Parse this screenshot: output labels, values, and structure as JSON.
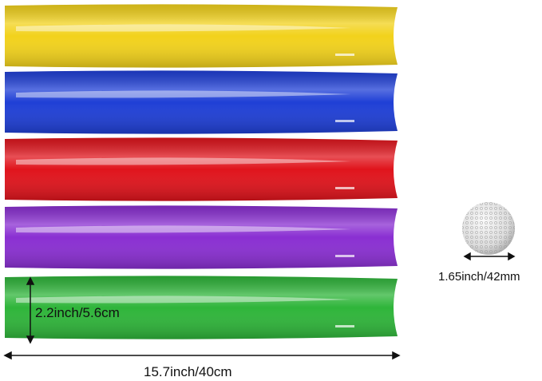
{
  "product": {
    "tubes": [
      {
        "color_name": "yellow",
        "color": "#f2d21c"
      },
      {
        "color_name": "blue",
        "color": "#1f3fd6"
      },
      {
        "color_name": "red",
        "color": "#e0141c"
      },
      {
        "color_name": "purple",
        "color": "#8a2fd2"
      },
      {
        "color_name": "green",
        "color": "#2fb53a"
      }
    ],
    "ball_color": "#e8e8e8"
  },
  "dimensions": {
    "height": "2.2inch/5.6cm",
    "length": "15.7inch/40cm",
    "ball_diameter": "1.65inch/42mm"
  }
}
